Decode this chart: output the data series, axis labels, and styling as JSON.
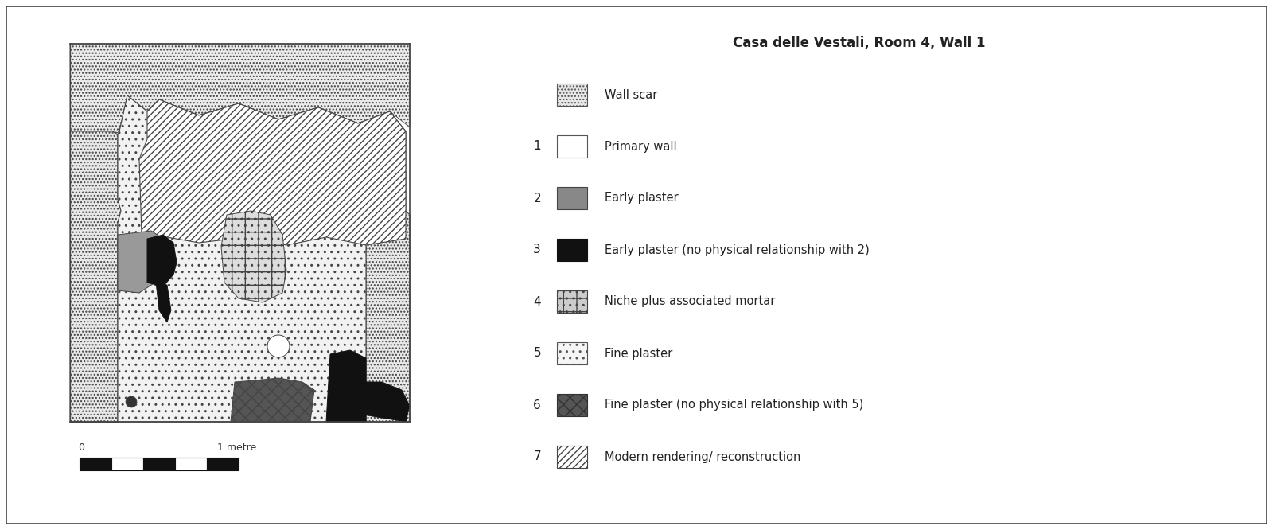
{
  "title": "Casa delle Vestali, Room 4, Wall 1",
  "title_fontsize": 12,
  "title_fontweight": "bold",
  "background_color": "#ffffff",
  "legend_items": [
    {
      "label": "Wall scar",
      "number": "",
      "facecolor": "#e8e8e8",
      "edgecolor": "#555555",
      "hatch": "...."
    },
    {
      "label": "Primary wall",
      "number": "1",
      "facecolor": "#ffffff",
      "edgecolor": "#555555",
      "hatch": ""
    },
    {
      "label": "Early plaster",
      "number": "2",
      "facecolor": "#888888",
      "edgecolor": "#444444",
      "hatch": "==="
    },
    {
      "label": "Early plaster (no physical relationship with 2)",
      "number": "3",
      "facecolor": "#111111",
      "edgecolor": "#111111",
      "hatch": ""
    },
    {
      "label": "Niche plus associated mortar",
      "number": "4",
      "facecolor": "#cccccc",
      "edgecolor": "#444444",
      "hatch": "+.."
    },
    {
      "label": "Fine plaster",
      "number": "5",
      "facecolor": "#f5f5f5",
      "edgecolor": "#555555",
      "hatch": ".."
    },
    {
      "label": "Fine plaster (no physical relationship with 5)",
      "number": "6",
      "facecolor": "#555555",
      "edgecolor": "#333333",
      "hatch": "xx"
    },
    {
      "label": "Modern rendering/ reconstruction",
      "number": "7",
      "facecolor": "#ffffff",
      "edgecolor": "#444444",
      "hatch": "////"
    }
  ]
}
